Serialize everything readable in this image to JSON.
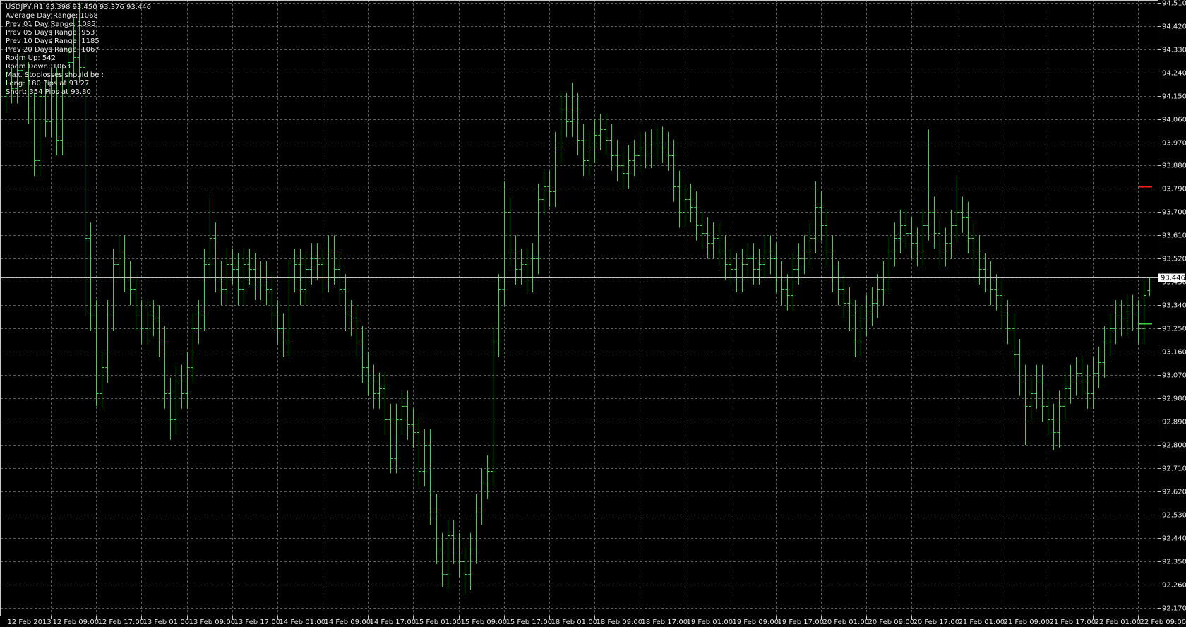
{
  "chart_data": {
    "type": "ohlc",
    "title": "USDJPY,H1  93.398 93.450 93.376 93.446",
    "annotations": [
      "Average Day  Range: 1068",
      "Prev 01  Day  Range: 1085",
      "Prev 05  Days Range: 953",
      "Prev 10  Days Range: 1185",
      "Prev 20  Days Range: 1067",
      "Room Up:     542",
      "Room Down: 1063",
      "Max. Stoplosses should be :",
      "Long:  180 Pips at 93.27",
      "Short: 354 Pips at 93.80"
    ],
    "color": "#3cd43c",
    "grid": true,
    "xlim": [
      -0.5,
      203.5
    ],
    "ylim": [
      92.14,
      94.52
    ],
    "xticks": [
      {
        "value": 0,
        "label": "12 Feb 2013"
      },
      {
        "value": 8,
        "label": "12 Feb 09:00"
      },
      {
        "value": 16,
        "label": "12 Feb 17:00"
      },
      {
        "value": 24,
        "label": "13 Feb 01:00"
      },
      {
        "value": 32,
        "label": "13 Feb 09:00"
      },
      {
        "value": 40,
        "label": "13 Feb 17:00"
      },
      {
        "value": 48,
        "label": "14 Feb 01:00"
      },
      {
        "value": 56,
        "label": "14 Feb 09:00"
      },
      {
        "value": 64,
        "label": "14 Feb 17:00"
      },
      {
        "value": 72,
        "label": "15 Feb 01:00"
      },
      {
        "value": 80,
        "label": "15 Feb 09:00"
      },
      {
        "value": 88,
        "label": "15 Feb 17:00"
      },
      {
        "value": 96,
        "label": "18 Feb 01:00"
      },
      {
        "value": 104,
        "label": "18 Feb 09:00"
      },
      {
        "value": 112,
        "label": "18 Feb 17:00"
      },
      {
        "value": 120,
        "label": "19 Feb 01:00"
      },
      {
        "value": 128,
        "label": "19 Feb 09:00"
      },
      {
        "value": 136,
        "label": "19 Feb 17:00"
      },
      {
        "value": 144,
        "label": "20 Feb 01:00"
      },
      {
        "value": 152,
        "label": "20 Feb 09:00"
      },
      {
        "value": 160,
        "label": "20 Feb 17:00"
      },
      {
        "value": 168,
        "label": "21 Feb 01:00"
      },
      {
        "value": 176,
        "label": "21 Feb 09:00"
      },
      {
        "value": 184,
        "label": "21 Feb 17:00"
      },
      {
        "value": 192,
        "label": "22 Feb 01:00"
      },
      {
        "value": 200,
        "label": "22 Feb 09:00"
      }
    ],
    "yticks": [
      {
        "value": 94.51,
        "label": "94.510"
      },
      {
        "value": 94.42,
        "label": "94.420"
      },
      {
        "value": 94.33,
        "label": "94.330"
      },
      {
        "value": 94.24,
        "label": "94.240"
      },
      {
        "value": 94.15,
        "label": "94.150"
      },
      {
        "value": 94.06,
        "label": "94.060"
      },
      {
        "value": 93.97,
        "label": "93.970"
      },
      {
        "value": 93.88,
        "label": "93.880"
      },
      {
        "value": 93.79,
        "label": "93.790"
      },
      {
        "value": 93.7,
        "label": "93.700"
      },
      {
        "value": 93.61,
        "label": "93.610"
      },
      {
        "value": 93.52,
        "label": "93.520"
      },
      {
        "value": 93.43,
        "label": "93.430"
      },
      {
        "value": 93.34,
        "label": "93.340"
      },
      {
        "value": 93.25,
        "label": "93.250"
      },
      {
        "value": 93.16,
        "label": "93.160"
      },
      {
        "value": 93.07,
        "label": "93.070"
      },
      {
        "value": 92.98,
        "label": "92.980"
      },
      {
        "value": 92.89,
        "label": "92.890"
      },
      {
        "value": 92.8,
        "label": "92.800"
      },
      {
        "value": 92.71,
        "label": "92.710"
      },
      {
        "value": 92.62,
        "label": "92.620"
      },
      {
        "value": 92.53,
        "label": "92.530"
      },
      {
        "value": 92.44,
        "label": "92.440"
      },
      {
        "value": 92.35,
        "label": "92.350"
      },
      {
        "value": 92.26,
        "label": "92.260"
      },
      {
        "value": 92.17,
        "label": "92.170"
      }
    ],
    "last_price": 93.446,
    "last_price_color": "#c0c0c0",
    "short_level": {
      "value": 93.8,
      "color": "#ff1a1a"
    },
    "long_level": {
      "value": 93.27,
      "color": "#3cd43c"
    },
    "open": [
      94.15,
      94.2,
      94.18,
      94.25,
      94.22,
      94.1,
      93.9,
      94.15,
      94.05,
      94.2,
      93.98,
      94.2,
      94.28,
      94.3,
      94.26,
      93.6,
      93.3,
      93.0,
      93.1,
      93.3,
      93.5,
      93.55,
      93.45,
      93.4,
      93.3,
      93.25,
      93.3,
      93.28,
      93.2,
      93.0,
      92.9,
      93.05,
      93.0,
      93.1,
      93.25,
      93.3,
      93.5,
      93.6,
      93.45,
      93.4,
      93.5,
      93.48,
      93.4,
      93.5,
      93.48,
      93.42,
      93.45,
      93.4,
      93.3,
      93.25,
      93.2,
      93.45,
      93.5,
      93.4,
      93.48,
      93.52,
      93.5,
      93.45,
      93.55,
      93.48,
      93.4,
      93.3,
      93.28,
      93.2,
      93.1,
      93.05,
      93.0,
      93.02,
      92.9,
      92.75,
      92.9,
      92.95,
      92.88,
      92.85,
      92.7,
      92.8,
      92.55,
      92.4,
      92.3,
      92.45,
      92.4,
      92.35,
      92.3,
      92.4,
      92.55,
      92.65,
      92.7,
      93.2,
      93.4,
      93.7,
      93.55,
      93.48,
      93.5,
      93.45,
      93.52,
      93.75,
      93.8,
      93.78,
      93.95,
      94.1,
      94.05,
      94.1,
      93.98,
      93.9,
      93.95,
      94.0,
      94.02,
      93.98,
      93.92,
      93.88,
      93.85,
      93.9,
      93.92,
      93.95,
      93.93,
      93.96,
      93.97,
      93.95,
      93.92,
      93.8,
      93.7,
      93.75,
      93.72,
      93.65,
      93.62,
      93.58,
      93.6,
      93.55,
      93.5,
      93.48,
      93.45,
      93.5,
      93.52,
      93.48,
      93.5,
      93.55,
      93.52,
      93.45,
      93.4,
      93.38,
      93.48,
      93.52,
      93.55,
      93.6,
      93.72,
      93.65,
      93.55,
      93.45,
      93.4,
      93.35,
      93.3,
      93.2,
      93.28,
      93.32,
      93.35,
      93.4,
      93.45,
      93.55,
      93.6,
      93.65,
      93.62,
      93.58,
      93.55,
      93.65,
      93.7,
      93.62,
      93.55,
      93.58,
      93.65,
      93.7,
      93.68,
      93.6,
      93.55,
      93.48,
      93.45,
      93.4,
      93.38,
      93.3,
      93.25,
      93.15,
      93.05,
      92.95,
      93.0,
      93.05,
      92.95,
      92.9,
      92.85,
      92.95,
      93.02,
      93.05,
      93.08,
      93.05,
      93.0,
      93.08,
      93.12,
      93.2,
      93.25,
      93.3,
      93.28,
      93.32,
      93.3,
      93.25,
      93.398
    ],
    "high": [
      94.26,
      94.26,
      94.31,
      94.31,
      94.28,
      94.16,
      94.21,
      94.21,
      94.26,
      94.26,
      94.26,
      94.34,
      94.45,
      94.51,
      94.32,
      93.66,
      93.36,
      93.16,
      93.36,
      93.56,
      93.61,
      93.61,
      93.51,
      93.46,
      93.36,
      93.36,
      93.36,
      93.34,
      93.26,
      93.06,
      93.11,
      93.11,
      93.16,
      93.31,
      93.36,
      93.56,
      93.76,
      93.66,
      93.51,
      93.56,
      93.56,
      93.54,
      93.56,
      93.56,
      93.54,
      93.51,
      93.51,
      93.46,
      93.36,
      93.31,
      93.51,
      93.56,
      93.56,
      93.54,
      93.58,
      93.58,
      93.56,
      93.61,
      93.61,
      93.54,
      93.46,
      93.36,
      93.34,
      93.26,
      93.16,
      93.11,
      93.08,
      93.08,
      92.96,
      92.96,
      93.01,
      93.01,
      92.94,
      92.91,
      92.86,
      92.86,
      92.61,
      92.46,
      92.51,
      92.51,
      92.46,
      92.41,
      92.46,
      92.61,
      92.71,
      92.76,
      93.26,
      93.46,
      93.82,
      93.76,
      93.61,
      93.56,
      93.56,
      93.58,
      93.81,
      93.86,
      93.86,
      94.01,
      94.16,
      94.16,
      94.2,
      94.16,
      94.04,
      94.01,
      94.06,
      94.08,
      94.08,
      94.04,
      93.98,
      93.94,
      93.96,
      93.98,
      94.01,
      94.01,
      94.02,
      94.03,
      94.03,
      94.01,
      93.98,
      93.86,
      93.81,
      93.81,
      93.78,
      93.71,
      93.68,
      93.66,
      93.66,
      93.61,
      93.56,
      93.54,
      93.56,
      93.58,
      93.58,
      93.56,
      93.61,
      93.61,
      93.58,
      93.51,
      93.46,
      93.54,
      93.58,
      93.61,
      93.66,
      93.82,
      93.78,
      93.71,
      93.61,
      93.51,
      93.46,
      93.41,
      93.36,
      93.34,
      93.38,
      93.41,
      93.46,
      93.51,
      93.61,
      93.66,
      93.71,
      93.71,
      93.68,
      93.64,
      93.71,
      94.02,
      93.76,
      93.68,
      93.64,
      93.71,
      93.84,
      93.76,
      93.74,
      93.66,
      93.61,
      93.54,
      93.51,
      93.46,
      93.44,
      93.36,
      93.31,
      93.21,
      93.11,
      93.06,
      93.11,
      93.11,
      93.01,
      92.96,
      93.01,
      93.08,
      93.11,
      93.14,
      93.14,
      93.11,
      93.14,
      93.18,
      93.26,
      93.31,
      93.36,
      93.36,
      93.38,
      93.38,
      93.36,
      93.44,
      93.45
    ],
    "low": [
      94.09,
      94.12,
      94.12,
      94.16,
      94.04,
      93.84,
      93.84,
      93.99,
      93.99,
      93.92,
      93.92,
      94.14,
      94.22,
      94.2,
      93.3,
      93.24,
      92.95,
      92.94,
      93.04,
      93.24,
      93.44,
      93.39,
      93.34,
      93.24,
      93.19,
      93.19,
      93.22,
      93.14,
      92.94,
      92.82,
      92.84,
      92.94,
      92.94,
      93.04,
      93.19,
      93.24,
      93.44,
      93.39,
      93.34,
      93.34,
      93.42,
      93.34,
      93.34,
      93.42,
      93.36,
      93.36,
      93.34,
      93.24,
      93.19,
      93.14,
      93.14,
      93.39,
      93.34,
      93.34,
      93.42,
      93.44,
      93.39,
      93.39,
      93.42,
      93.34,
      93.24,
      93.22,
      93.14,
      93.04,
      92.99,
      92.94,
      92.94,
      92.84,
      92.69,
      92.69,
      92.84,
      92.82,
      92.79,
      92.64,
      92.64,
      92.49,
      92.34,
      92.25,
      92.24,
      92.34,
      92.29,
      92.22,
      92.24,
      92.34,
      92.49,
      92.59,
      92.64,
      93.14,
      93.34,
      93.49,
      93.42,
      93.42,
      93.39,
      93.39,
      93.46,
      93.69,
      93.72,
      93.72,
      93.89,
      93.99,
      93.99,
      93.92,
      93.84,
      93.84,
      93.89,
      93.94,
      93.92,
      93.86,
      93.82,
      93.79,
      93.79,
      93.84,
      93.86,
      93.87,
      93.87,
      93.9,
      93.89,
      93.86,
      93.74,
      93.64,
      93.64,
      93.66,
      93.59,
      93.56,
      93.52,
      93.52,
      93.49,
      93.44,
      93.42,
      93.39,
      93.39,
      93.44,
      93.42,
      93.42,
      93.44,
      93.46,
      93.39,
      93.34,
      93.32,
      93.32,
      93.42,
      93.46,
      93.49,
      93.54,
      93.59,
      93.49,
      93.39,
      93.34,
      93.29,
      93.24,
      93.14,
      93.14,
      93.22,
      93.26,
      93.29,
      93.34,
      93.39,
      93.49,
      93.54,
      93.56,
      93.52,
      93.49,
      93.49,
      93.59,
      93.56,
      93.49,
      93.49,
      93.52,
      93.59,
      93.62,
      93.54,
      93.49,
      93.42,
      93.39,
      93.34,
      93.32,
      93.24,
      93.19,
      93.09,
      92.99,
      92.8,
      92.89,
      92.94,
      92.89,
      92.84,
      92.78,
      92.79,
      92.89,
      92.96,
      92.99,
      92.99,
      92.94,
      92.94,
      93.02,
      93.06,
      93.14,
      93.19,
      93.22,
      93.22,
      93.24,
      93.19,
      93.19,
      93.376
    ],
    "close": [
      94.2,
      94.18,
      94.25,
      94.22,
      94.1,
      93.9,
      94.15,
      94.05,
      94.2,
      93.98,
      94.2,
      94.28,
      94.3,
      94.26,
      93.6,
      93.3,
      93.0,
      93.1,
      93.3,
      93.5,
      93.55,
      93.45,
      93.4,
      93.3,
      93.25,
      93.3,
      93.28,
      93.2,
      93.0,
      92.9,
      93.05,
      93.0,
      93.1,
      93.25,
      93.3,
      93.5,
      93.6,
      93.45,
      93.4,
      93.5,
      93.48,
      93.4,
      93.5,
      93.48,
      93.42,
      93.45,
      93.4,
      93.3,
      93.25,
      93.2,
      93.45,
      93.5,
      93.4,
      93.48,
      93.52,
      93.5,
      93.45,
      93.55,
      93.48,
      93.4,
      93.3,
      93.28,
      93.2,
      93.1,
      93.05,
      93.0,
      93.02,
      92.9,
      92.75,
      92.9,
      92.95,
      92.88,
      92.85,
      92.7,
      92.8,
      92.55,
      92.4,
      92.3,
      92.45,
      92.4,
      92.35,
      92.3,
      92.4,
      92.55,
      92.65,
      92.7,
      93.2,
      93.4,
      93.7,
      93.55,
      93.48,
      93.5,
      93.45,
      93.52,
      93.75,
      93.8,
      93.78,
      93.95,
      94.1,
      94.05,
      94.1,
      93.98,
      93.9,
      93.95,
      94.0,
      94.02,
      93.98,
      93.92,
      93.88,
      93.85,
      93.9,
      93.92,
      93.95,
      93.93,
      93.96,
      93.97,
      93.95,
      93.92,
      93.8,
      93.7,
      93.75,
      93.72,
      93.65,
      93.62,
      93.58,
      93.6,
      93.55,
      93.5,
      93.48,
      93.45,
      93.5,
      93.52,
      93.48,
      93.5,
      93.55,
      93.52,
      93.45,
      93.4,
      93.38,
      93.48,
      93.52,
      93.55,
      93.6,
      93.72,
      93.65,
      93.55,
      93.45,
      93.4,
      93.35,
      93.3,
      93.2,
      93.28,
      93.32,
      93.35,
      93.4,
      93.45,
      93.55,
      93.6,
      93.65,
      93.62,
      93.58,
      93.55,
      93.65,
      93.7,
      93.62,
      93.55,
      93.58,
      93.65,
      93.7,
      93.68,
      93.6,
      93.55,
      93.48,
      93.45,
      93.4,
      93.38,
      93.3,
      93.25,
      93.15,
      93.05,
      92.95,
      93.0,
      93.05,
      92.95,
      92.9,
      92.85,
      92.95,
      93.02,
      93.05,
      93.08,
      93.05,
      93.0,
      93.08,
      93.12,
      93.2,
      93.25,
      93.3,
      93.28,
      93.32,
      93.3,
      93.25,
      93.38,
      93.446
    ]
  }
}
